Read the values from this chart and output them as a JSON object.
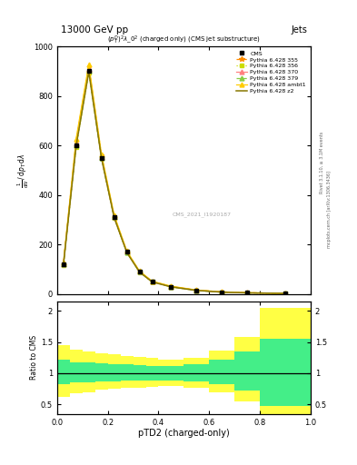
{
  "title_top": "13000 GeV pp",
  "title_right": "Jets",
  "plot_title": "$(p_T^D)^2\\lambda\\_0^2$ (charged only) (CMS jet substructure)",
  "xlabel": "pTD2 (charged-only)",
  "ylabel_main": "$\\mathrm{mathrm\\,d}^2N$\n$\\mathrm{mathrm\\,d}p_T\\,\\mathrm{mathrm\\,d}\\lambda$",
  "ylabel_ratio": "Ratio to CMS",
  "right_label1": "Rivet 3.1.10, ≥ 3.1M events",
  "right_label2": "mcplots.cern.ch [arXiv:1306.3436]",
  "watermark": "CMS_2021_I1920187",
  "cms_label": "CMS",
  "x_bins": [
    0.0,
    0.05,
    0.1,
    0.15,
    0.2,
    0.25,
    0.3,
    0.35,
    0.4,
    0.5,
    0.6,
    0.7,
    0.8,
    1.0
  ],
  "cms_data": [
    120,
    600,
    900,
    550,
    310,
    170,
    90,
    50,
    30,
    15,
    8,
    5,
    3
  ],
  "pythia_355": [
    125,
    620,
    920,
    560,
    315,
    172,
    92,
    51,
    31,
    16,
    9,
    5.5,
    3.2
  ],
  "pythia_356": [
    118,
    595,
    895,
    548,
    308,
    168,
    89,
    49,
    29,
    14.5,
    7.8,
    4.8,
    2.9
  ],
  "pythia_370": [
    122,
    608,
    908,
    552,
    311,
    170,
    90,
    50,
    30,
    15.2,
    8.1,
    4.9,
    3.0
  ],
  "pythia_379": [
    120,
    602,
    902,
    550,
    310,
    169,
    90,
    50,
    30,
    15.1,
    8.0,
    4.9,
    3.0
  ],
  "pythia_ambt1": [
    128,
    628,
    928,
    565,
    320,
    174,
    93,
    52,
    32,
    16.5,
    9.2,
    5.7,
    3.3
  ],
  "pythia_z2": [
    119,
    598,
    898,
    549,
    309,
    168,
    89,
    49,
    29,
    14.8,
    7.9,
    4.8,
    2.9
  ],
  "ratio_green_upper": [
    1.22,
    1.18,
    1.17,
    1.16,
    1.15,
    1.14,
    1.13,
    1.12,
    1.12,
    1.15,
    1.22,
    1.35,
    1.55
  ],
  "ratio_green_lower": [
    0.82,
    0.85,
    0.86,
    0.87,
    0.87,
    0.88,
    0.88,
    0.89,
    0.89,
    0.87,
    0.82,
    0.72,
    0.48
  ],
  "ratio_yellow_upper": [
    1.45,
    1.38,
    1.35,
    1.32,
    1.3,
    1.28,
    1.26,
    1.24,
    1.22,
    1.25,
    1.36,
    1.58,
    2.05
  ],
  "ratio_yellow_lower": [
    0.62,
    0.68,
    0.7,
    0.74,
    0.75,
    0.76,
    0.77,
    0.78,
    0.79,
    0.77,
    0.7,
    0.55,
    0.22
  ],
  "color_355": "#ff8c00",
  "color_356": "#ccdd00",
  "color_370": "#ff8080",
  "color_379": "#88cc44",
  "color_ambt1": "#ffcc00",
  "color_z2": "#887700",
  "ylim_main": [
    0,
    1000
  ],
  "ylim_ratio": [
    0.35,
    2.15
  ],
  "background_color": "#ffffff"
}
